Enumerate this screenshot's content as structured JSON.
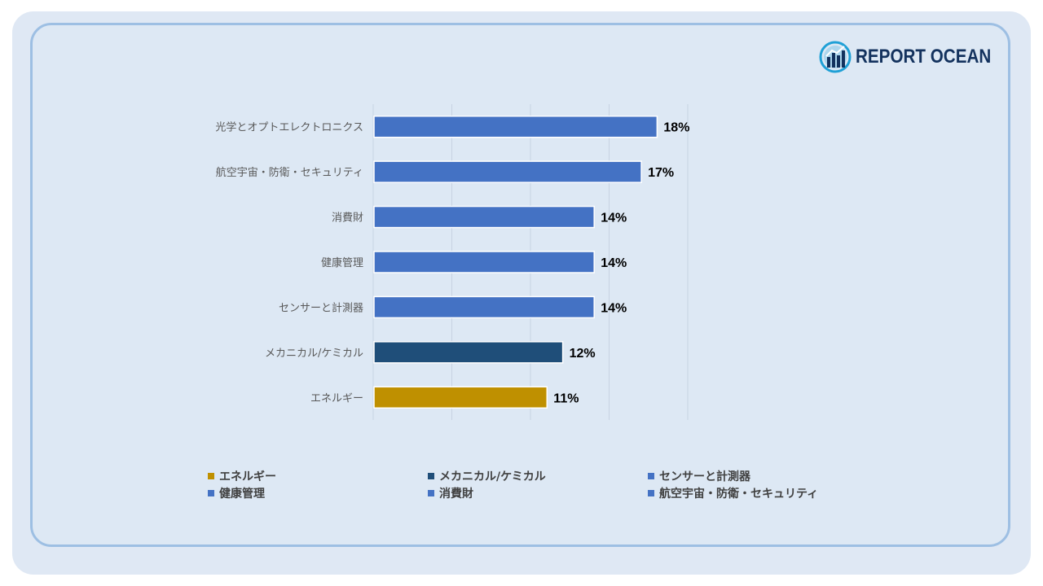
{
  "brand": {
    "name": "REPORT OCEAN",
    "icon": "chart-globe-icon",
    "color": "#13325e"
  },
  "colors": {
    "default_bar": "#4472c4",
    "dark_bar": "#1f4e79",
    "gold_bar": "#bf9000"
  },
  "chart_data": {
    "type": "bar",
    "orientation": "horizontal",
    "categories": [
      "光学とオプトエレクトロニクス",
      "航空宇宙・防衛・セキュリティ",
      "消費財",
      "健康管理",
      "センサーと計測器",
      "メカニカル/ケミカル",
      "エネルギー"
    ],
    "values": [
      18,
      17,
      14,
      14,
      14,
      12,
      11
    ],
    "value_labels": [
      "18%",
      "17%",
      "14%",
      "14%",
      "14%",
      "12%",
      "11%"
    ],
    "bar_colors": [
      "#4472c4",
      "#4472c4",
      "#4472c4",
      "#4472c4",
      "#4472c4",
      "#1f4e79",
      "#bf9000"
    ],
    "xlim": [
      0,
      20
    ],
    "grid": true,
    "legend_position": "bottom",
    "legend": [
      {
        "label": "エネルギー",
        "color": "#bf9000"
      },
      {
        "label": "メカニカル/ケミカル",
        "color": "#1f4e79"
      },
      {
        "label": "センサーと計測器",
        "color": "#4472c4"
      },
      {
        "label": "健康管理",
        "color": "#4472c4"
      },
      {
        "label": "消費財",
        "color": "#4472c4"
      },
      {
        "label": "航空宇宙・防衛・セキュリティ",
        "color": "#4472c4"
      }
    ]
  }
}
